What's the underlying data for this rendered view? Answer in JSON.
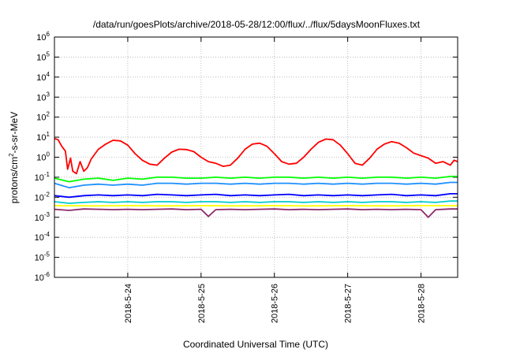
{
  "chart_data": {
    "type": "line",
    "title": "/data/run/goesPlots/archive/2018-05-28/12:00/flux/../flux/5daysMoonFluxes.txt",
    "xlabel": "Coordinated Universal Time (UTC)",
    "ylabel": {
      "prefix": "protons/cm",
      "sup": "2",
      "suffix": "-s-sr-MeV"
    },
    "yscale": "log",
    "ylim": [
      1e-06,
      1000000.0
    ],
    "y_ticks": [
      {
        "mantissa": "10",
        "exp": "6"
      },
      {
        "mantissa": "10",
        "exp": "5"
      },
      {
        "mantissa": "10",
        "exp": "4"
      },
      {
        "mantissa": "10",
        "exp": "3"
      },
      {
        "mantissa": "10",
        "exp": "2"
      },
      {
        "mantissa": "10",
        "exp": "1"
      },
      {
        "mantissa": "10",
        "exp": "0"
      },
      {
        "mantissa": "10",
        "exp": "-1"
      },
      {
        "mantissa": "10",
        "exp": "-2"
      },
      {
        "mantissa": "10",
        "exp": "-3"
      },
      {
        "mantissa": "10",
        "exp": "-4"
      },
      {
        "mantissa": "10",
        "exp": "-5"
      },
      {
        "mantissa": "10",
        "exp": "-6"
      }
    ],
    "x_range_days": [
      "2018-05-23 00:00",
      "2018-05-28 12:00"
    ],
    "x_ticks": [
      "2018-5-24",
      "2018-5-25",
      "2018-5-26",
      "2018-5-27",
      "2018-5-28"
    ],
    "grid": true,
    "series": [
      {
        "color": "#ff0000",
        "points": [
          [
            0.0,
            8.5
          ],
          [
            0.05,
            7.5
          ],
          [
            0.1,
            3.5
          ],
          [
            0.15,
            2.0
          ],
          [
            0.18,
            0.25
          ],
          [
            0.22,
            0.9
          ],
          [
            0.25,
            0.2
          ],
          [
            0.3,
            0.15
          ],
          [
            0.35,
            0.6
          ],
          [
            0.4,
            0.2
          ],
          [
            0.45,
            0.3
          ],
          [
            0.5,
            0.8
          ],
          [
            0.6,
            2.5
          ],
          [
            0.7,
            4.5
          ],
          [
            0.8,
            7.0
          ],
          [
            0.9,
            6.5
          ],
          [
            1.0,
            4.0
          ],
          [
            1.1,
            1.5
          ],
          [
            1.2,
            0.7
          ],
          [
            1.3,
            0.45
          ],
          [
            1.4,
            0.4
          ],
          [
            1.5,
            0.9
          ],
          [
            1.6,
            1.8
          ],
          [
            1.7,
            2.5
          ],
          [
            1.8,
            2.4
          ],
          [
            1.9,
            1.9
          ],
          [
            2.0,
            1.0
          ],
          [
            2.1,
            0.6
          ],
          [
            2.2,
            0.5
          ],
          [
            2.3,
            0.35
          ],
          [
            2.4,
            0.4
          ],
          [
            2.5,
            0.9
          ],
          [
            2.6,
            2.5
          ],
          [
            2.7,
            4.5
          ],
          [
            2.8,
            5.0
          ],
          [
            2.9,
            3.5
          ],
          [
            3.0,
            1.5
          ],
          [
            3.1,
            0.6
          ],
          [
            3.2,
            0.45
          ],
          [
            3.3,
            0.5
          ],
          [
            3.4,
            1.0
          ],
          [
            3.5,
            2.5
          ],
          [
            3.6,
            5.5
          ],
          [
            3.7,
            8.0
          ],
          [
            3.8,
            7.5
          ],
          [
            3.9,
            4.0
          ],
          [
            4.0,
            1.5
          ],
          [
            4.1,
            0.5
          ],
          [
            4.2,
            0.4
          ],
          [
            4.3,
            0.9
          ],
          [
            4.4,
            2.5
          ],
          [
            4.5,
            4.5
          ],
          [
            4.6,
            6.0
          ],
          [
            4.7,
            5.0
          ],
          [
            4.8,
            3.0
          ],
          [
            4.9,
            1.6
          ],
          [
            5.0,
            1.2
          ],
          [
            5.1,
            0.9
          ],
          [
            5.2,
            0.5
          ],
          [
            5.3,
            0.6
          ],
          [
            5.4,
            0.4
          ],
          [
            5.45,
            0.7
          ],
          [
            5.5,
            0.6
          ]
        ]
      },
      {
        "color": "#00ff00",
        "points": [
          [
            0.0,
            0.09
          ],
          [
            0.2,
            0.06
          ],
          [
            0.4,
            0.08
          ],
          [
            0.6,
            0.09
          ],
          [
            0.8,
            0.07
          ],
          [
            1.0,
            0.09
          ],
          [
            1.2,
            0.08
          ],
          [
            1.4,
            0.1
          ],
          [
            1.6,
            0.1
          ],
          [
            1.8,
            0.09
          ],
          [
            2.0,
            0.09
          ],
          [
            2.2,
            0.1
          ],
          [
            2.4,
            0.09
          ],
          [
            2.6,
            0.1
          ],
          [
            2.8,
            0.09
          ],
          [
            3.0,
            0.1
          ],
          [
            3.2,
            0.1
          ],
          [
            3.4,
            0.09
          ],
          [
            3.6,
            0.1
          ],
          [
            3.8,
            0.09
          ],
          [
            4.0,
            0.1
          ],
          [
            4.2,
            0.09
          ],
          [
            4.4,
            0.1
          ],
          [
            4.6,
            0.1
          ],
          [
            4.8,
            0.09
          ],
          [
            5.0,
            0.1
          ],
          [
            5.2,
            0.09
          ],
          [
            5.4,
            0.11
          ],
          [
            5.5,
            0.11
          ]
        ]
      },
      {
        "color": "#1e90ff",
        "points": [
          [
            0.0,
            0.05
          ],
          [
            0.2,
            0.03
          ],
          [
            0.4,
            0.04
          ],
          [
            0.6,
            0.045
          ],
          [
            0.8,
            0.04
          ],
          [
            1.0,
            0.045
          ],
          [
            1.2,
            0.04
          ],
          [
            1.4,
            0.05
          ],
          [
            1.6,
            0.05
          ],
          [
            1.8,
            0.045
          ],
          [
            2.0,
            0.05
          ],
          [
            2.2,
            0.05
          ],
          [
            2.4,
            0.045
          ],
          [
            2.6,
            0.05
          ],
          [
            2.8,
            0.045
          ],
          [
            3.0,
            0.05
          ],
          [
            3.2,
            0.05
          ],
          [
            3.4,
            0.045
          ],
          [
            3.6,
            0.05
          ],
          [
            3.8,
            0.045
          ],
          [
            4.0,
            0.05
          ],
          [
            4.2,
            0.045
          ],
          [
            4.4,
            0.05
          ],
          [
            4.6,
            0.05
          ],
          [
            4.8,
            0.045
          ],
          [
            5.0,
            0.05
          ],
          [
            5.2,
            0.045
          ],
          [
            5.4,
            0.055
          ],
          [
            5.5,
            0.055
          ]
        ]
      },
      {
        "color": "#0000ff",
        "points": [
          [
            0.0,
            0.012
          ],
          [
            0.2,
            0.01
          ],
          [
            0.4,
            0.012
          ],
          [
            0.6,
            0.013
          ],
          [
            0.8,
            0.012
          ],
          [
            1.0,
            0.013
          ],
          [
            1.2,
            0.012
          ],
          [
            1.4,
            0.014
          ],
          [
            1.6,
            0.013
          ],
          [
            1.8,
            0.012
          ],
          [
            2.0,
            0.013
          ],
          [
            2.2,
            0.014
          ],
          [
            2.4,
            0.012
          ],
          [
            2.6,
            0.013
          ],
          [
            2.8,
            0.012
          ],
          [
            3.0,
            0.013
          ],
          [
            3.2,
            0.014
          ],
          [
            3.4,
            0.012
          ],
          [
            3.6,
            0.013
          ],
          [
            3.8,
            0.012
          ],
          [
            4.0,
            0.013
          ],
          [
            4.2,
            0.012
          ],
          [
            4.4,
            0.013
          ],
          [
            4.6,
            0.014
          ],
          [
            4.8,
            0.012
          ],
          [
            5.0,
            0.013
          ],
          [
            5.2,
            0.012
          ],
          [
            5.4,
            0.015
          ],
          [
            5.5,
            0.015
          ]
        ]
      },
      {
        "color": "#00cccc",
        "points": [
          [
            0.0,
            0.006
          ],
          [
            0.2,
            0.005
          ],
          [
            0.4,
            0.0055
          ],
          [
            0.6,
            0.006
          ],
          [
            0.8,
            0.0055
          ],
          [
            1.0,
            0.006
          ],
          [
            1.2,
            0.0055
          ],
          [
            1.4,
            0.006
          ],
          [
            1.6,
            0.006
          ],
          [
            1.8,
            0.0055
          ],
          [
            2.0,
            0.006
          ],
          [
            2.2,
            0.006
          ],
          [
            2.4,
            0.0055
          ],
          [
            2.6,
            0.006
          ],
          [
            2.8,
            0.0055
          ],
          [
            3.0,
            0.006
          ],
          [
            3.2,
            0.006
          ],
          [
            3.4,
            0.0055
          ],
          [
            3.6,
            0.006
          ],
          [
            3.8,
            0.0055
          ],
          [
            4.0,
            0.006
          ],
          [
            4.2,
            0.0055
          ],
          [
            4.4,
            0.006
          ],
          [
            4.6,
            0.006
          ],
          [
            4.8,
            0.0055
          ],
          [
            5.0,
            0.006
          ],
          [
            5.2,
            0.0055
          ],
          [
            5.4,
            0.0065
          ],
          [
            5.5,
            0.0065
          ]
        ]
      },
      {
        "color": "#ffff00",
        "points": [
          [
            0.0,
            0.0038
          ],
          [
            0.5,
            0.0037
          ],
          [
            1.0,
            0.0038
          ],
          [
            1.5,
            0.0037
          ],
          [
            2.0,
            0.0038
          ],
          [
            2.5,
            0.0037
          ],
          [
            3.0,
            0.0038
          ],
          [
            3.5,
            0.0037
          ],
          [
            4.0,
            0.0038
          ],
          [
            4.5,
            0.0037
          ],
          [
            5.0,
            0.0038
          ],
          [
            5.5,
            0.0038
          ]
        ]
      },
      {
        "color": "#8b2a6b",
        "points": [
          [
            0.0,
            0.0025
          ],
          [
            0.2,
            0.0022
          ],
          [
            0.4,
            0.0026
          ],
          [
            0.6,
            0.0025
          ],
          [
            0.8,
            0.0024
          ],
          [
            1.0,
            0.0025
          ],
          [
            1.2,
            0.0024
          ],
          [
            1.4,
            0.0025
          ],
          [
            1.6,
            0.0026
          ],
          [
            1.8,
            0.0024
          ],
          [
            2.0,
            0.0025
          ],
          [
            2.1,
            0.0011
          ],
          [
            2.2,
            0.0024
          ],
          [
            2.4,
            0.0025
          ],
          [
            2.6,
            0.0024
          ],
          [
            2.8,
            0.0025
          ],
          [
            3.0,
            0.0026
          ],
          [
            3.2,
            0.0024
          ],
          [
            3.4,
            0.0025
          ],
          [
            3.6,
            0.0024
          ],
          [
            3.8,
            0.0025
          ],
          [
            4.0,
            0.0026
          ],
          [
            4.2,
            0.0024
          ],
          [
            4.4,
            0.0025
          ],
          [
            4.6,
            0.0024
          ],
          [
            4.8,
            0.0025
          ],
          [
            5.0,
            0.0024
          ],
          [
            5.1,
            0.001
          ],
          [
            5.2,
            0.0024
          ],
          [
            5.4,
            0.0026
          ],
          [
            5.5,
            0.0026
          ]
        ]
      }
    ]
  }
}
